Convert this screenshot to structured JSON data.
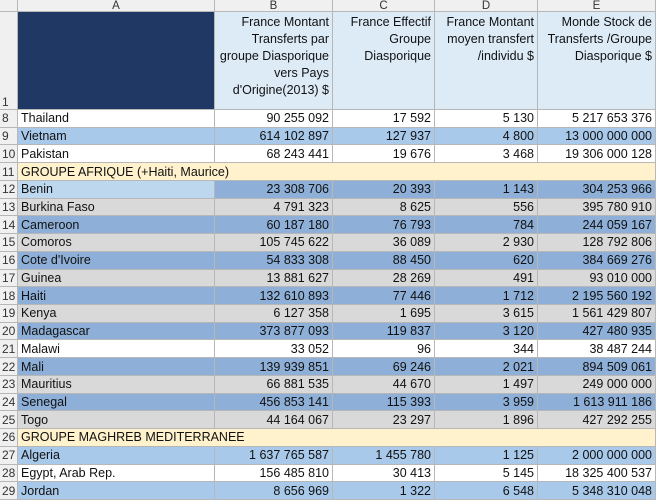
{
  "columns": [
    "A",
    "B",
    "C",
    "D",
    "E"
  ],
  "header": {
    "row": "1",
    "color": "#1f3864",
    "cells": [
      "France Montant Transferts par groupe Diasporique vers Pays d'Origine(2013) $",
      "France Effectif Groupe Diasporique",
      "France Montant moyen transfert /individu $",
      "Monde Stock de Transferts /Groupe Diasporique  $"
    ]
  },
  "rows": [
    {
      "n": "8",
      "color": "#ffffff",
      "cells": [
        "Thailand",
        "90 255 092",
        "17 592",
        "5 130",
        "5 217 653 376"
      ]
    },
    {
      "n": "9",
      "color": "#a9c9ea",
      "cells": [
        "Vietnam",
        "614 102 897",
        "127 937",
        "4 800",
        "13 000 000 000"
      ]
    },
    {
      "n": "10",
      "color": "#ffffff",
      "cells": [
        "Pakistan",
        "68 243 441",
        "19 676",
        "3 468",
        "19 306 000 128"
      ]
    },
    {
      "n": "11",
      "color": "#fff2cc",
      "cells": [
        "GROUPE AFRIQUE (+Haiti, Maurice)"
      ]
    },
    {
      "n": "12",
      "color": "#8eb0d8",
      "label_color": "#bdd7ee",
      "cells": [
        "Benin",
        "23 308 706",
        "20 393",
        "1 143",
        "304 253 966"
      ]
    },
    {
      "n": "13",
      "color": "#d9d9d9",
      "cells": [
        "Burkina Faso",
        "4 791 323",
        "8 625",
        "556",
        "395 780 910"
      ]
    },
    {
      "n": "14",
      "color": "#8eb0d8",
      "cells": [
        "Cameroon",
        "60 187 180",
        "76 793",
        "784",
        "244 059 167"
      ]
    },
    {
      "n": "15",
      "color": "#d9d9d9",
      "cells": [
        "Comoros",
        "105 745 622",
        "36 089",
        "2 930",
        "128 792 806"
      ]
    },
    {
      "n": "16",
      "color": "#8eb0d8",
      "cells": [
        "Cote d'Ivoire",
        "54 833 308",
        "88 450",
        "620",
        "384 669 276"
      ]
    },
    {
      "n": "17",
      "color": "#d9d9d9",
      "cells": [
        "Guinea",
        "13 881 627",
        "28 269",
        "491",
        "93 010 000"
      ]
    },
    {
      "n": "18",
      "color": "#8eb0d8",
      "cells": [
        "Haiti",
        "132 610 893",
        "77 446",
        "1 712",
        "2 195 560 192"
      ]
    },
    {
      "n": "19",
      "color": "#d9d9d9",
      "cells": [
        "Kenya",
        "6 127 358",
        "1 695",
        "3 615",
        "1 561 429 807"
      ]
    },
    {
      "n": "20",
      "color": "#8eb0d8",
      "cells": [
        "Madagascar",
        "373 877 093",
        "119 837",
        "3 120",
        "427 480 935"
      ]
    },
    {
      "n": "21",
      "color": "#ffffff",
      "cells": [
        "Malawi",
        "33 052",
        "96",
        "344",
        "38 487 244"
      ]
    },
    {
      "n": "22",
      "color": "#8eb0d8",
      "cells": [
        "Mali",
        "139 939 851",
        "69 246",
        "2 021",
        "894 509 061"
      ]
    },
    {
      "n": "23",
      "color": "#d9d9d9",
      "cells": [
        "Mauritius",
        "66 881 535",
        "44 670",
        "1 497",
        "249 000 000"
      ]
    },
    {
      "n": "24",
      "color": "#8eb0d8",
      "cells": [
        "Senegal",
        "456 853 141",
        "115 393",
        "3 959",
        "1 613 911 186"
      ]
    },
    {
      "n": "25",
      "color": "#d9d9d9",
      "cells": [
        "Togo",
        "44 164 067",
        "23 297",
        "1 896",
        "427 292 255"
      ]
    },
    {
      "n": "26",
      "color": "#fff2cc",
      "cells": [
        "GROUPE MAGHREB MEDITERRANEE"
      ]
    },
    {
      "n": "27",
      "color": "#a9c9ea",
      "cells": [
        "Algeria",
        "1 637 765 587",
        "1 455 780",
        "1 125",
        "2 000 000 000"
      ]
    },
    {
      "n": "28",
      "color": "#ffffff",
      "cells": [
        "Egypt, Arab Rep.",
        "156 485 810",
        "30 413",
        "5 145",
        "18 325 400 537"
      ]
    },
    {
      "n": "29",
      "color": "#a9c9ea",
      "cells": [
        "Jordan",
        "8 656 969",
        "1 322",
        "6 548",
        "5 348 310 048"
      ]
    }
  ]
}
